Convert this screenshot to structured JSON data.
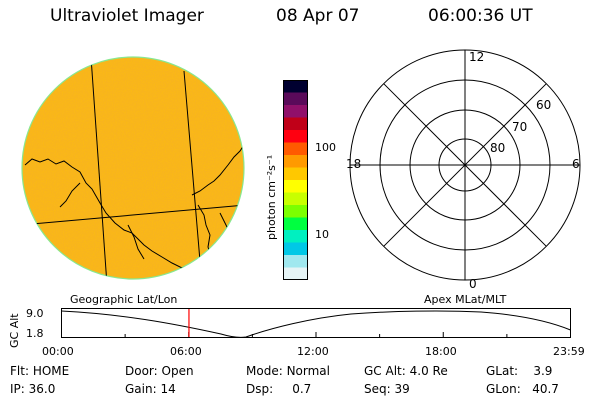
{
  "header": {
    "instrument": "Ultraviolet Imager",
    "date": "08 Apr 07",
    "time": "06:00:36 UT"
  },
  "colorbar": {
    "label": "photon cm⁻²s⁻¹",
    "ticks": [
      "100",
      "10"
    ],
    "colors": [
      "#000030",
      "#5a0a5a",
      "#90106a",
      "#c00018",
      "#ff0010",
      "#ff5a00",
      "#ff9a00",
      "#ffc800",
      "#ffff00",
      "#c8ff00",
      "#7cff00",
      "#00ff40",
      "#00f0c0",
      "#00c8e6",
      "#a0e8ef",
      "#e6f4f6"
    ]
  },
  "polar_plot": {
    "mlt_labels": {
      "top": "12",
      "left": "18",
      "right": "6",
      "bottom": "0"
    },
    "lat_labels": [
      "60",
      "70",
      "80"
    ]
  },
  "timeline": {
    "left_label": "Geographic Lat/Lon",
    "right_label": "Apex MLat/MLT",
    "yaxis_title": "GC Alt",
    "ymax": "9.0",
    "ymin": "1.8",
    "x_ticks": [
      "00:00",
      "06:00",
      "12:00",
      "18:00",
      "23:59"
    ],
    "cursor_time_hours": 6.01,
    "cursor_color": "#ff0000"
  },
  "info": {
    "row1": [
      {
        "key": "Flt:",
        "value": "HOME"
      },
      {
        "key": "Door:",
        "value": "Open"
      },
      {
        "key": "Mode:",
        "value": "Normal"
      },
      {
        "key": "GC Alt:",
        "value": "4.0 Re"
      },
      {
        "key": "GLat:",
        "value": "3.9"
      }
    ],
    "row2": [
      {
        "key": "IP:",
        "value": "36.0"
      },
      {
        "key": "Gain:",
        "value": "14"
      },
      {
        "key": "Dsp:",
        "value": "0.7"
      },
      {
        "key": "Seq:",
        "value": "39"
      },
      {
        "key": "GLon:",
        "value": "40.7"
      }
    ]
  }
}
